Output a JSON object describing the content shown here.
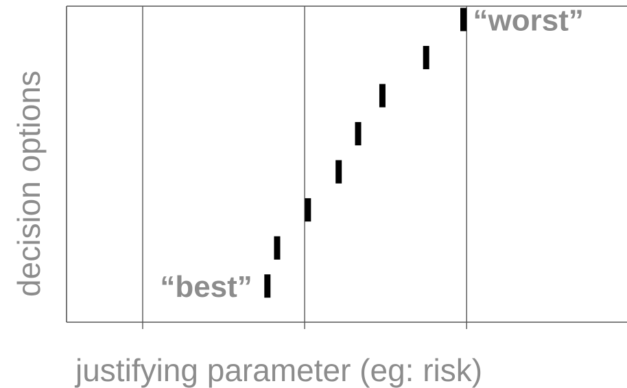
{
  "chart_data": {
    "type": "scatter",
    "xlabel": "justifying parameter (eg: risk)",
    "ylabel": "decision options",
    "marker": "short vertical bar",
    "points": [
      {
        "x": 1.77,
        "y": 1
      },
      {
        "x": 1.83,
        "y": 2
      },
      {
        "x": 2.02,
        "y": 3
      },
      {
        "x": 2.21,
        "y": 4
      },
      {
        "x": 2.33,
        "y": 5
      },
      {
        "x": 2.48,
        "y": 6
      },
      {
        "x": 2.75,
        "y": 7
      },
      {
        "x": 2.98,
        "y": 8
      }
    ],
    "xlim": [
      0.53,
      3.99
    ],
    "ylim": [
      0.05,
      8.35
    ],
    "vertical_gridlines_x": [
      1,
      2,
      3
    ],
    "annotations": [
      {
        "text": "“best”",
        "x": 1.77,
        "y": 1
      },
      {
        "text": "“worst”",
        "x": 2.98,
        "y": 8
      }
    ],
    "colors": {
      "text": "#8c8c8c",
      "marker": "#000000",
      "axis": "#555555"
    }
  }
}
